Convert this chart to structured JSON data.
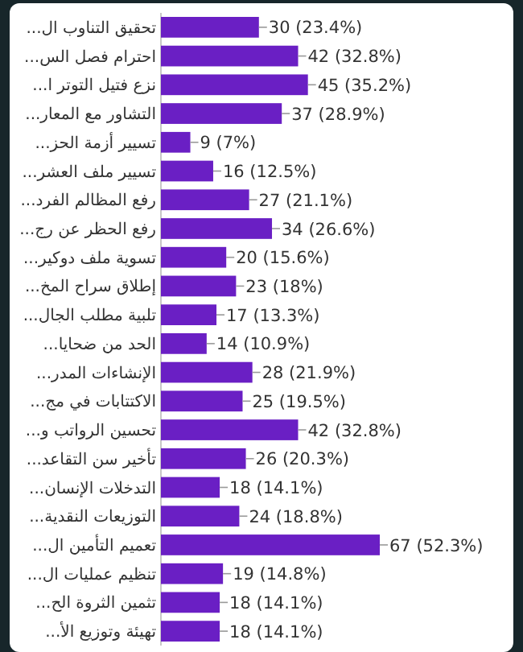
{
  "chart_data": {
    "type": "bar",
    "orientation": "horizontal",
    "color": "#6a1fc4",
    "categories": [
      "تحقيق التناوب ال...",
      "احترام فصل الس...",
      "نزع فتيل التوتر ا...",
      "التشاور مع المعار...",
      "تسيير أزمة الحز...",
      "تسيير ملف العشر...",
      "رفع المظالم الفرد...",
      "رفع الحظر عن رج...",
      "تسوية ملف دوكير...",
      "إطلاق سراح المخ...",
      "تلبية مطلب الجال...",
      "الحد من ضحايا...",
      "الإنشاءات المدر...",
      "الاكتتابات في مج...",
      "تحسين الرواتب و...",
      "تأخير سن التقاعد...",
      "التدخلات الإنسان...",
      "التوزيعات النقدية...",
      "تعميم التأمين ال...",
      "تنظيم عمليات ال...",
      "تثمين الثروة الح...",
      "تهيئة وتوزيع الأ..."
    ],
    "values": [
      30,
      42,
      45,
      37,
      9,
      16,
      27,
      34,
      20,
      23,
      17,
      14,
      28,
      25,
      42,
      26,
      18,
      24,
      67,
      19,
      18,
      18
    ],
    "value_labels": [
      "30 (23.4%)",
      "42 (32.8%)",
      "45 (35.2%)",
      "37 (28.9%)",
      "9 (7%)",
      "16 (12.5%)",
      "27 (21.1%)",
      "34 (26.6%)",
      "20 (15.6%)",
      "23 (18%)",
      "17 (13.3%)",
      "14 (10.9%)",
      "28 (21.9%)",
      "25 (19.5%)",
      "42 (32.8%)",
      "26 (20.3%)",
      "18 (14.1%)",
      "24 (18.8%)",
      "67 (52.3%)",
      "19 (14.8%)",
      "18 (14.1%)",
      "18 (14.1%)"
    ]
  }
}
